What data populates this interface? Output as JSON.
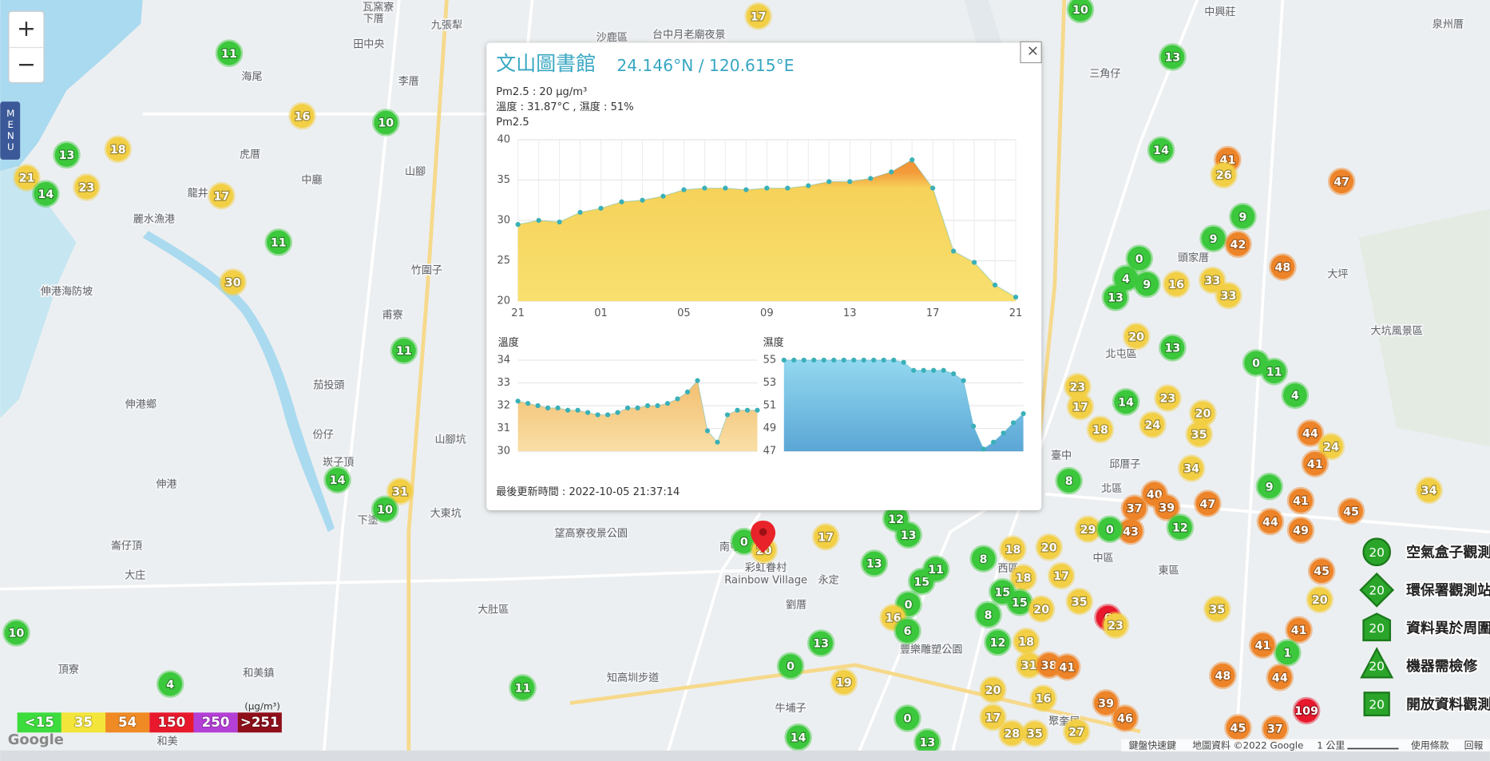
{
  "controls": {
    "zoom_in": "+",
    "zoom_out": "−",
    "menu": "MENU"
  },
  "popup": {
    "title": "文山圖書館",
    "coordinates": "24.146°N / 120.615°E",
    "close": "×",
    "lines": [
      "Pm2.5 : 20 μg/m³",
      "溫度 : 31.87°C , 濕度 : 51%"
    ],
    "pm25_chart": {
      "type": "area",
      "title": "Pm2.5",
      "categories": [
        "21",
        null,
        null,
        null,
        "01",
        null,
        null,
        null,
        "05",
        null,
        null,
        null,
        "09",
        null,
        null,
        null,
        "13",
        null,
        null,
        null,
        "17",
        null,
        null,
        null,
        "21"
      ],
      "values": [
        29.5,
        30,
        29.8,
        31,
        31.5,
        32.3,
        32.5,
        33,
        33.8,
        34,
        34,
        33.8,
        34,
        34,
        34.3,
        34.8,
        34.8,
        35.2,
        36,
        37.5,
        34,
        26.2,
        24.8,
        22,
        20.5
      ],
      "color": "#3ab0b8",
      "ylim": [
        20,
        40
      ],
      "yticks": [
        20,
        25,
        30,
        35,
        40
      ],
      "grid": true
    },
    "temperature_chart": {
      "type": "area",
      "title": "溫度",
      "values": [
        32.2,
        32.1,
        32,
        31.9,
        31.9,
        31.8,
        31.8,
        31.7,
        31.6,
        31.6,
        31.7,
        31.9,
        31.9,
        32,
        32,
        32.1,
        32.3,
        32.6,
        33.1,
        30.9,
        30.4,
        31.6,
        31.8,
        31.8,
        31.8
      ],
      "color": "#3ab0b8",
      "ylim": [
        30,
        34
      ],
      "yticks": [
        30,
        31,
        32,
        33,
        34
      ],
      "grid": true
    },
    "humidity_chart": {
      "type": "area",
      "title": "濕度",
      "values": [
        55,
        55,
        55,
        55,
        55,
        55,
        55,
        55,
        55,
        55,
        55,
        55,
        54.8,
        54.1,
        54.1,
        54.1,
        54.1,
        53.8,
        53.2,
        49.2,
        47.2,
        47.8,
        48.6,
        49.5,
        50.3
      ],
      "color": "#3ab0b8",
      "ylim": [
        47,
        55
      ],
      "yticks": [
        47,
        49,
        51,
        53,
        55
      ],
      "grid": true
    },
    "updated": "最後更新時間 : 2022-10-05 21:37:14"
  },
  "markers": [
    {
      "value": 11,
      "color": "#3cc83c"
    },
    {
      "value": 16,
      "color": "#f2cf45"
    },
    {
      "value": 10,
      "color": "#3cc83c"
    },
    {
      "value": 18,
      "color": "#f2cf45"
    },
    {
      "value": 13,
      "color": "#3cc83c"
    },
    {
      "value": 21,
      "color": "#f2cf45"
    },
    {
      "value": 14,
      "color": "#3cc83c"
    },
    {
      "value": 23,
      "color": "#f2cf45"
    },
    {
      "value": 17,
      "color": "#f2cf45"
    },
    {
      "value": 11,
      "color": "#3cc83c"
    },
    {
      "value": 30,
      "color": "#f2cf45"
    },
    {
      "value": 11,
      "color": "#3cc83c"
    },
    {
      "value": 14,
      "color": "#3cc83c"
    },
    {
      "value": 31,
      "color": "#f2cf45"
    },
    {
      "value": 10,
      "color": "#3cc83c"
    },
    {
      "value": 4,
      "color": "#3cc83c"
    },
    {
      "value": 11,
      "color": "#3cc83c"
    },
    {
      "value": 17,
      "color": "#f2cf45"
    },
    {
      "value": 10,
      "color": "#3cc83c"
    },
    {
      "value": 10,
      "color": "#3cc83c"
    },
    {
      "value": 13,
      "color": "#3cc83c"
    },
    {
      "value": 14,
      "color": "#3cc83c"
    },
    {
      "value": 41,
      "color": "#ee8429"
    },
    {
      "value": 26,
      "color": "#f2cf45"
    },
    {
      "value": 47,
      "color": "#ee8429"
    },
    {
      "value": 9,
      "color": "#3cc83c"
    },
    {
      "value": 9,
      "color": "#3cc83c"
    },
    {
      "value": 42,
      "color": "#ee8429"
    },
    {
      "value": 48,
      "color": "#ee8429"
    },
    {
      "value": 0,
      "color": "#3cc83c"
    },
    {
      "value": 4,
      "color": "#3cc83c"
    },
    {
      "value": 9,
      "color": "#3cc83c"
    },
    {
      "value": 16,
      "color": "#f2cf45"
    },
    {
      "value": 33,
      "color": "#f2cf45"
    },
    {
      "value": 33,
      "color": "#f2cf45"
    },
    {
      "value": 13,
      "color": "#3cc83c"
    },
    {
      "value": 20,
      "color": "#f2cf45"
    },
    {
      "value": 13,
      "color": "#3cc83c"
    },
    {
      "value": 0,
      "color": "#3cc83c"
    },
    {
      "value": 11,
      "color": "#3cc83c"
    },
    {
      "value": 4,
      "color": "#3cc83c"
    },
    {
      "value": 23,
      "color": "#f2cf45"
    },
    {
      "value": 17,
      "color": "#f2cf45"
    },
    {
      "value": 14,
      "color": "#3cc83c"
    },
    {
      "value": 23,
      "color": "#f2cf45"
    },
    {
      "value": 20,
      "color": "#f2cf45"
    },
    {
      "value": 18,
      "color": "#f2cf45"
    },
    {
      "value": 24,
      "color": "#f2cf45"
    },
    {
      "value": 35,
      "color": "#f2cf45"
    },
    {
      "value": 44,
      "color": "#ee8429"
    },
    {
      "value": 24,
      "color": "#f2cf45"
    },
    {
      "value": 41,
      "color": "#ee8429"
    },
    {
      "value": 34,
      "color": "#f2cf45"
    },
    {
      "value": 34,
      "color": "#f2cf45"
    },
    {
      "value": 9,
      "color": "#3cc83c"
    },
    {
      "value": 41,
      "color": "#ee8429"
    },
    {
      "value": 45,
      "color": "#ee8429"
    },
    {
      "value": 44,
      "color": "#ee8429"
    },
    {
      "value": 49,
      "color": "#ee8429"
    },
    {
      "value": 8,
      "color": "#3cc83c"
    },
    {
      "value": 40,
      "color": "#ee8429"
    },
    {
      "value": 37,
      "color": "#ee8429"
    },
    {
      "value": 39,
      "color": "#ee8429"
    },
    {
      "value": 47,
      "color": "#ee8429"
    },
    {
      "value": 43,
      "color": "#ee8429"
    },
    {
      "value": 12,
      "color": "#3cc83c"
    },
    {
      "value": 29,
      "color": "#f2cf45"
    },
    {
      "value": 0,
      "color": "#3cc83c"
    },
    {
      "value": 45,
      "color": "#ee8429"
    },
    {
      "value": 20,
      "color": "#f2cf45"
    },
    {
      "value": 41,
      "color": "#ee8429"
    },
    {
      "value": 1,
      "color": "#3cc83c"
    },
    {
      "value": 41,
      "color": "#ee8429"
    },
    {
      "value": 48,
      "color": "#ee8429"
    },
    {
      "value": 44,
      "color": "#ee8429"
    },
    {
      "value": 109,
      "color": "#e8192c"
    },
    {
      "value": 45,
      "color": "#ee8429"
    },
    {
      "value": 37,
      "color": "#ee8429"
    },
    {
      "value": 35,
      "color": "#f2cf45"
    },
    {
      "value": 6,
      "color": "#e8192c"
    },
    {
      "value": 23,
      "color": "#f2cf45"
    },
    {
      "value": 39,
      "color": "#ee8429"
    },
    {
      "value": 46,
      "color": "#ee8429"
    },
    {
      "value": 27,
      "color": "#f2cf45"
    },
    {
      "value": 17,
      "color": "#f2cf45"
    },
    {
      "value": 12,
      "color": "#3cc83c"
    },
    {
      "value": 13,
      "color": "#3cc83c"
    },
    {
      "value": 13,
      "color": "#3cc83c"
    },
    {
      "value": 15,
      "color": "#3cc83c"
    },
    {
      "value": 11,
      "color": "#3cc83c"
    },
    {
      "value": 8,
      "color": "#3cc83c"
    },
    {
      "value": 18,
      "color": "#f2cf45"
    },
    {
      "value": 20,
      "color": "#f2cf45"
    },
    {
      "value": 17,
      "color": "#f2cf45"
    },
    {
      "value": 18,
      "color": "#f2cf45"
    },
    {
      "value": 15,
      "color": "#3cc83c"
    },
    {
      "value": 15,
      "color": "#3cc83c"
    },
    {
      "value": 20,
      "color": "#f2cf45"
    },
    {
      "value": 35,
      "color": "#f2cf45"
    },
    {
      "value": 0,
      "color": "#3cc83c"
    },
    {
      "value": 16,
      "color": "#f2cf45"
    },
    {
      "value": 6,
      "color": "#3cc83c"
    },
    {
      "value": 8,
      "color": "#3cc83c"
    },
    {
      "value": 12,
      "color": "#3cc83c"
    },
    {
      "value": 18,
      "color": "#f2cf45"
    },
    {
      "value": 31,
      "color": "#f2cf45"
    },
    {
      "value": 38,
      "color": "#ee8429"
    },
    {
      "value": 41,
      "color": "#ee8429"
    },
    {
      "value": 20,
      "color": "#f2cf45"
    },
    {
      "value": 16,
      "color": "#f2cf45"
    },
    {
      "value": 17,
      "color": "#f2cf45"
    },
    {
      "value": 28,
      "color": "#f2cf45"
    },
    {
      "value": 35,
      "color": "#f2cf45"
    },
    {
      "value": 0,
      "color": "#3cc83c"
    },
    {
      "value": 13,
      "color": "#3cc83c"
    },
    {
      "value": 13,
      "color": "#3cc83c"
    },
    {
      "value": 19,
      "color": "#f2cf45"
    },
    {
      "value": 0,
      "color": "#3cc83c"
    },
    {
      "value": 14,
      "color": "#3cc83c"
    },
    {
      "value": 0,
      "color": "#3cc83c"
    },
    {
      "value": 20,
      "color": "#f2cf45"
    }
  ],
  "places": [
    "瓦窯寮",
    "下厝",
    "九張犁",
    "田中央",
    "海尾",
    "李厝",
    "沙鹿區",
    "台中月老廟夜景",
    "虎厝",
    "龍井",
    "中廳",
    "麗水漁港",
    "竹圍子",
    "伸港海防坡",
    "甫寮",
    "茄投頭",
    "伸港鄉",
    "山腳坑",
    "份仔",
    "崁子頂",
    "伸港",
    "大東坑",
    "下塗",
    "崙仔頂",
    "大庄",
    "頂寮",
    "和美鎮",
    "和美",
    "大肚區",
    "望高寮夜景公園",
    "永定",
    "劉厝",
    "南屯",
    "彩虹眷村",
    "Rainbow Village",
    "知高圳步道",
    "牛埔子",
    "中興莊",
    "泉州厝",
    "三角仔",
    "頭家厝",
    "大坪",
    "北屯區",
    "臺中",
    "北區",
    "邱厝子",
    "西區",
    "中區",
    "東區",
    "山腳",
    "豐樂雕塑公園",
    "聚奎居",
    "大坑風景區"
  ],
  "aqi_legend": {
    "unit": "(μg/m³)",
    "items": [
      {
        "label": "<15",
        "color": "#3ddc3d"
      },
      {
        "label": "35",
        "color": "#f3e53a"
      },
      {
        "label": "54",
        "color": "#f08a24"
      },
      {
        "label": "150",
        "color": "#e8192c"
      },
      {
        "label": "250",
        "color": "#b43fd6"
      },
      {
        "label": ">251",
        "color": "#8e0f1a"
      }
    ]
  },
  "station_legend": [
    {
      "count": 20,
      "label": "空氣盒子觀測"
    },
    {
      "count": 20,
      "label": "環保署觀測站"
    },
    {
      "count": 20,
      "label": "資料異於周圍"
    },
    {
      "count": 20,
      "label": "機器需檢修"
    },
    {
      "count": 20,
      "label": "開放資料觀測"
    }
  ],
  "footer": [
    "鍵盤快速鍵",
    "地圖資料 ©2022 Google",
    "1 公里",
    "使用條款",
    "回報"
  ],
  "logo": "Google"
}
